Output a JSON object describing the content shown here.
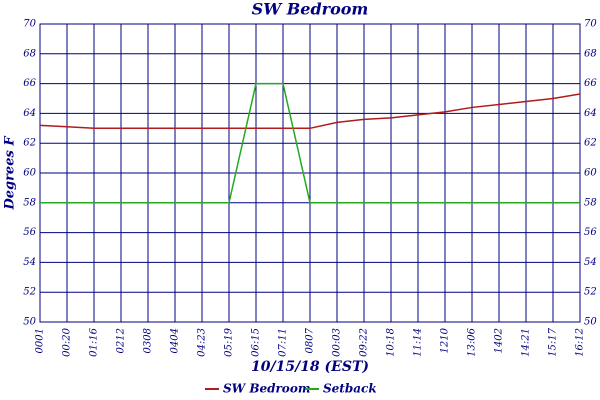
{
  "chart_data": {
    "type": "line",
    "title": "SW Bedroom",
    "ylabel": "Degrees F",
    "xlabel": "10/15/18 (EST)",
    "categories": [
      "0001",
      "00:20",
      "01:16",
      "0212",
      "0308",
      "0404",
      "04:23",
      "05:19",
      "06:15",
      "07:11",
      "0807",
      "00:03",
      "09:22",
      "10:18",
      "11:14",
      "1210",
      "13:06",
      "1402",
      "14:21",
      "15:17",
      "16:12"
    ],
    "series": [
      {
        "name": "SW Bedroom",
        "color": "#b01c1c",
        "values": [
          63.2,
          63.1,
          63.0,
          63.0,
          63.0,
          63.0,
          63.0,
          63.0,
          63.0,
          63.0,
          63.0,
          63.4,
          63.6,
          63.7,
          63.9,
          64.1,
          64.4,
          64.6,
          64.8,
          65.0,
          65.3
        ]
      },
      {
        "name": "Setback",
        "color": "#22aa22",
        "values": [
          58,
          58,
          58,
          58,
          58,
          58,
          58,
          58,
          66,
          66,
          58,
          58,
          58,
          58,
          58,
          58,
          58,
          58,
          58,
          58,
          58
        ]
      }
    ],
    "ylim": [
      50,
      70
    ],
    "yticks": [
      50,
      52,
      54,
      56,
      58,
      60,
      62,
      64,
      66,
      68,
      70
    ],
    "y2lim": [
      50,
      70
    ],
    "y2ticks": [
      50,
      52,
      54,
      56,
      58,
      60,
      62,
      64,
      66,
      68,
      70
    ],
    "grid": true
  }
}
